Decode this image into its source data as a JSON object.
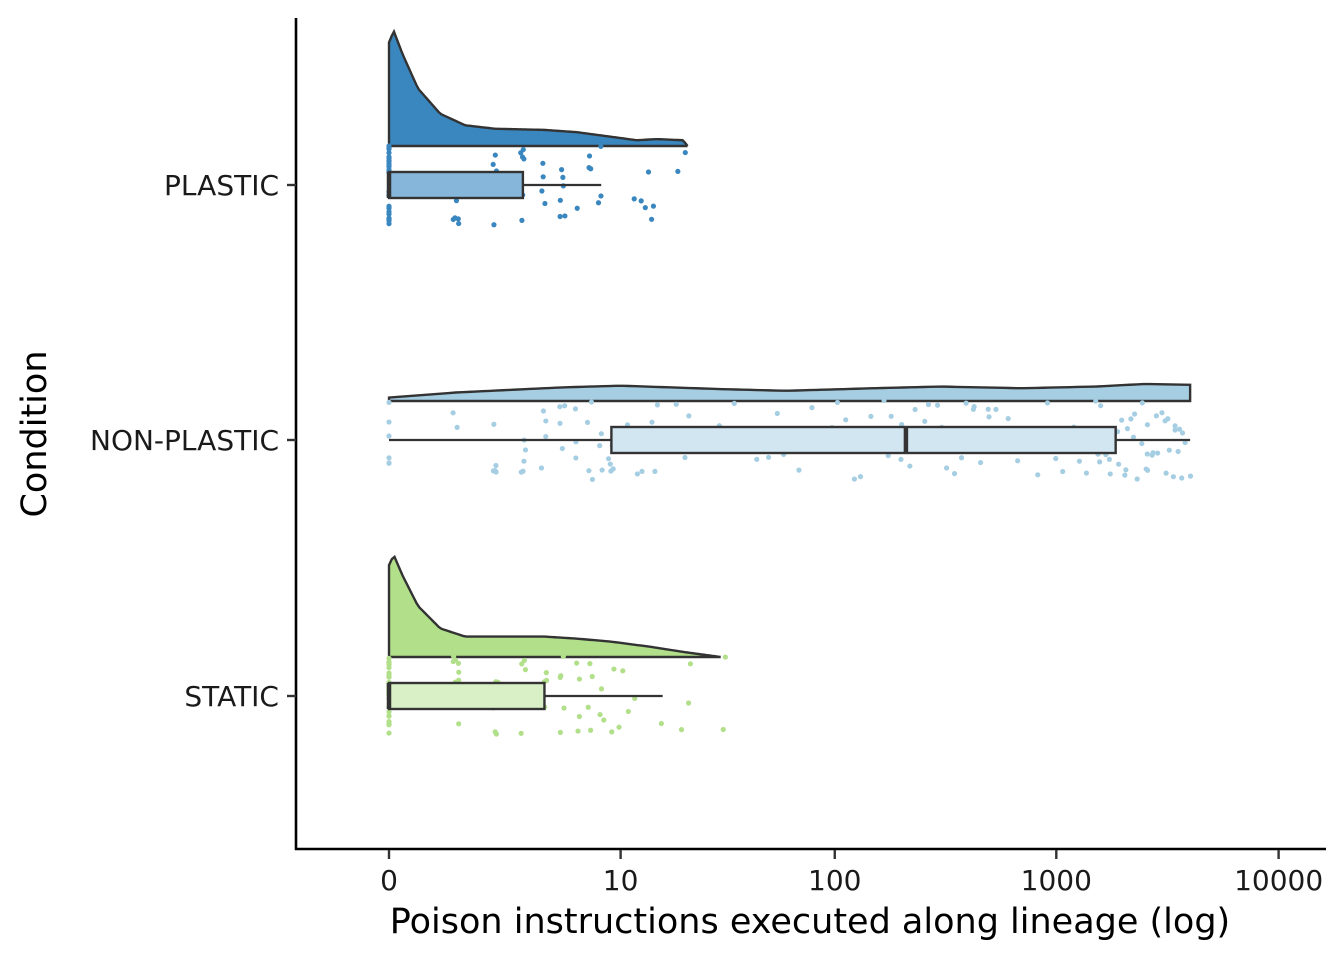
{
  "chart_data": {
    "type": "raincloud",
    "title": "",
    "xlabel": "Poison instructions executed along lineage (log)",
    "ylabel": "Condition",
    "x_scale": "log1p",
    "x_ticks": [
      {
        "value": 0,
        "label": "0"
      },
      {
        "value": 10,
        "label": "10"
      },
      {
        "value": 100,
        "label": "100"
      },
      {
        "value": 1000,
        "label": "1000"
      },
      {
        "value": 10000,
        "label": "10000"
      }
    ],
    "grid": false,
    "legend": "none",
    "categories": [
      "PLASTIC",
      "NON-PLASTIC",
      "STATIC"
    ],
    "series": [
      {
        "name": "PLASTIC",
        "color": "#3a87c0",
        "box_fill": "#86b6da",
        "box": {
          "min": 0,
          "q1": 0,
          "median": 0,
          "q3": 3,
          "max": 8
        },
        "density": [
          [
            0,
            0.9
          ],
          [
            0.05,
            1.0
          ],
          [
            0.15,
            0.8
          ],
          [
            0.35,
            0.5
          ],
          [
            0.7,
            0.28
          ],
          [
            1.2,
            0.18
          ],
          [
            2,
            0.15
          ],
          [
            4,
            0.14
          ],
          [
            6,
            0.12
          ],
          [
            9,
            0.08
          ],
          [
            12,
            0.05
          ],
          [
            15,
            0.06
          ],
          [
            20,
            0.05
          ],
          [
            21,
            0.0
          ]
        ],
        "points": [
          0,
          0,
          0,
          0,
          0,
          0,
          0,
          0,
          0,
          0,
          0,
          0,
          0,
          0,
          0,
          0,
          0,
          0,
          0,
          0,
          0,
          0,
          0,
          0,
          0,
          0,
          0,
          0,
          1,
          1,
          1,
          1,
          1,
          1,
          1,
          2,
          2,
          2,
          2,
          2,
          2,
          2,
          3,
          3,
          3,
          3,
          3,
          3,
          3,
          4,
          4,
          4,
          4,
          5,
          5,
          5,
          5,
          5,
          5,
          6,
          7,
          7,
          7,
          8,
          8,
          8,
          12,
          13,
          13,
          14,
          14,
          14,
          19,
          21
        ]
      },
      {
        "name": "NON-PLASTIC",
        "color": "#a6cee3",
        "box_fill": "#d2e6f2",
        "box": {
          "min": 0,
          "q1": 9,
          "median": 210,
          "q3": 1850,
          "max": 4000
        },
        "density": [
          [
            0,
            0.2
          ],
          [
            1,
            0.5
          ],
          [
            5,
            0.8
          ],
          [
            10,
            0.9
          ],
          [
            30,
            0.7
          ],
          [
            60,
            0.6
          ],
          [
            150,
            0.75
          ],
          [
            300,
            0.85
          ],
          [
            700,
            0.75
          ],
          [
            1500,
            0.85
          ],
          [
            2500,
            1.0
          ],
          [
            4000,
            0.95
          ]
        ],
        "points": [
          0,
          0,
          0,
          0,
          0,
          0,
          1,
          1,
          2,
          2,
          2,
          2,
          2,
          3,
          3,
          3,
          3,
          3,
          4,
          4,
          4,
          4,
          5,
          5,
          5,
          5,
          6,
          6,
          6,
          7,
          7,
          7,
          7,
          8,
          8,
          8,
          9,
          9,
          9,
          9,
          9,
          10,
          10,
          11,
          11,
          12,
          12,
          13,
          14,
          14,
          15,
          15,
          16,
          18,
          20,
          22,
          25,
          28,
          30,
          35,
          40,
          45,
          50,
          55,
          60,
          70,
          80,
          90,
          95,
          100,
          110,
          120,
          130,
          140,
          150,
          160,
          170,
          180,
          190,
          200,
          220,
          240,
          260,
          280,
          300,
          320,
          350,
          380,
          400,
          420,
          450,
          480,
          500,
          550,
          600,
          650,
          700,
          750,
          800,
          900,
          1000,
          1100,
          1200,
          1300,
          1400,
          1500,
          1600,
          1700,
          1800,
          1900,
          2000,
          2100,
          2200,
          2300,
          2400,
          2500,
          2600,
          2800,
          3000,
          3200,
          3400,
          3600,
          3800,
          4000,
          230,
          260,
          300,
          340,
          380,
          420,
          460,
          500,
          120,
          140,
          160,
          180,
          200,
          2200,
          2400,
          2600,
          2800,
          3000,
          3200,
          3400,
          1500,
          1600,
          1700,
          1800,
          1900,
          2000,
          2100,
          2300,
          2500,
          2700,
          2900,
          3100,
          3300,
          3500,
          3700,
          3900
        ]
      },
      {
        "name": "STATIC",
        "color": "#b2df8a",
        "box_fill": "#d9efc5",
        "box": {
          "min": 0,
          "q1": 0,
          "median": 0,
          "q3": 4,
          "max": 16
        },
        "density": [
          [
            0,
            0.9
          ],
          [
            0.05,
            1.0
          ],
          [
            0.15,
            0.8
          ],
          [
            0.35,
            0.5
          ],
          [
            0.7,
            0.28
          ],
          [
            1.2,
            0.2
          ],
          [
            2,
            0.2
          ],
          [
            4,
            0.2
          ],
          [
            6,
            0.18
          ],
          [
            9,
            0.15
          ],
          [
            14,
            0.1
          ],
          [
            20,
            0.05
          ],
          [
            30,
            0.0
          ]
        ],
        "points": [
          0,
          0,
          0,
          0,
          0,
          0,
          0,
          0,
          0,
          0,
          0,
          0,
          0,
          0,
          0,
          0,
          0,
          0,
          0,
          0,
          0,
          0,
          0,
          0,
          0,
          0,
          0,
          0,
          0,
          0,
          1,
          1,
          1,
          1,
          1,
          1,
          1,
          1,
          1,
          1,
          2,
          2,
          2,
          2,
          2,
          2,
          2,
          2,
          3,
          3,
          3,
          3,
          3,
          3,
          4,
          4,
          4,
          4,
          5,
          5,
          5,
          5,
          5,
          6,
          6,
          6,
          6,
          7,
          7,
          7,
          7,
          8,
          8,
          8,
          9,
          9,
          10,
          10,
          11,
          12,
          16,
          20,
          21,
          22,
          30,
          31
        ]
      }
    ]
  }
}
